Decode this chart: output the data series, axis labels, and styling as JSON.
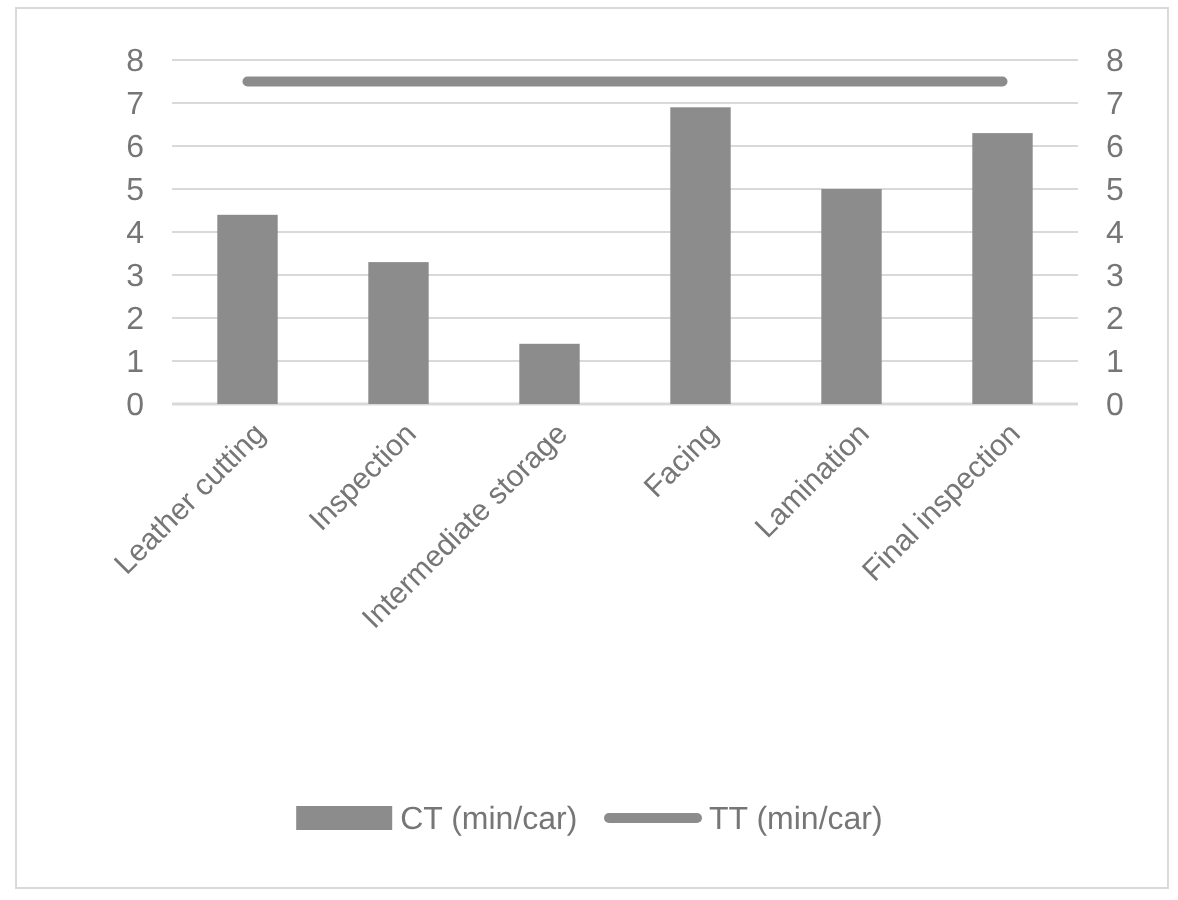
{
  "chart_data": {
    "type": "bar",
    "categories": [
      "Leather cutting",
      "Inspection",
      "Intermediate storage",
      "Facing",
      "Lamination",
      "Final inspection"
    ],
    "series": [
      {
        "name": "CT (min/car)",
        "color": "#8c8c8c",
        "values": [
          4.4,
          3.3,
          1.4,
          6.9,
          5.0,
          6.3
        ]
      },
      {
        "name": "TT (min/car)",
        "type": "line",
        "color": "#8c8c8c",
        "values": [
          7.5,
          7.5,
          7.5,
          7.5,
          7.5,
          7.5
        ]
      }
    ],
    "ylim": [
      0,
      8
    ],
    "yticks": [
      0,
      1,
      2,
      3,
      4,
      5,
      6,
      7,
      8
    ],
    "y2lim": [
      0,
      8
    ],
    "y2ticks": [
      0,
      1,
      2,
      3,
      4,
      5,
      6,
      7,
      8
    ],
    "grid": "y",
    "legend": "bottom",
    "marker": "none",
    "line_style": "solid"
  }
}
